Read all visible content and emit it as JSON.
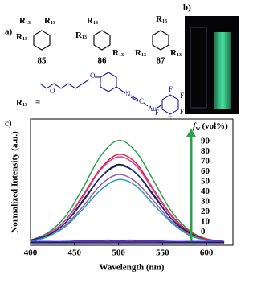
{
  "panel_a": {
    "label": "a)",
    "substituent": {
      "symbol": "R",
      "subscript": "13"
    },
    "compounds": [
      "85",
      "86",
      "87"
    ],
    "equals": "=",
    "atoms": [
      "O",
      "O",
      "N",
      "C",
      "Au",
      "F",
      "F",
      "F",
      "F",
      "F"
    ]
  },
  "panel_b": {
    "label": "b)"
  },
  "panel_c": {
    "label": "c)"
  },
  "chart_data": {
    "type": "line",
    "x_label": "Wavelength (nm)",
    "y_label": "Normalized Intensity (a.u.)",
    "legend_title": {
      "symbol": "f",
      "subscript": "w",
      "unit": "(vol%)"
    },
    "x": [
      400,
      420,
      440,
      460,
      480,
      500,
      520,
      540,
      560,
      580,
      600,
      620
    ],
    "xlim": [
      400,
      630
    ],
    "xticks": [
      400,
      450,
      500,
      550,
      600
    ],
    "ylim": [
      0,
      1
    ],
    "series": [
      {
        "name": "90",
        "color": "#2ca04a",
        "values": [
          0.04,
          0.1,
          0.23,
          0.46,
          0.71,
          0.83,
          0.74,
          0.51,
          0.27,
          0.12,
          0.05,
          0.03
        ]
      },
      {
        "name": "80",
        "color": "#e0203a",
        "values": [
          0.04,
          0.09,
          0.2,
          0.4,
          0.61,
          0.72,
          0.65,
          0.44,
          0.24,
          0.11,
          0.05,
          0.03
        ]
      },
      {
        "name": "70",
        "color": "#d040a0",
        "values": [
          0.04,
          0.09,
          0.2,
          0.39,
          0.6,
          0.7,
          0.63,
          0.43,
          0.23,
          0.1,
          0.04,
          0.03
        ]
      },
      {
        "name": "60",
        "color": "#202020",
        "values": [
          0.04,
          0.08,
          0.18,
          0.36,
          0.54,
          0.64,
          0.57,
          0.4,
          0.21,
          0.1,
          0.04,
          0.02
        ]
      },
      {
        "name": "50",
        "color": "#1a2a80",
        "values": [
          0.04,
          0.08,
          0.18,
          0.35,
          0.54,
          0.63,
          0.57,
          0.39,
          0.21,
          0.09,
          0.04,
          0.02
        ]
      },
      {
        "name": "40",
        "color": "#9a5ab8",
        "values": [
          0.03,
          0.07,
          0.16,
          0.31,
          0.48,
          0.56,
          0.5,
          0.35,
          0.19,
          0.09,
          0.04,
          0.02
        ]
      },
      {
        "name": "30",
        "color": "#30a0b0",
        "values": [
          0.03,
          0.07,
          0.15,
          0.29,
          0.44,
          0.52,
          0.47,
          0.32,
          0.18,
          0.08,
          0.04,
          0.02
        ]
      },
      {
        "name": "20",
        "color": "#2040d0",
        "values": [
          0.03,
          0.03,
          0.03,
          0.035,
          0.04,
          0.04,
          0.04,
          0.035,
          0.03,
          0.03,
          0.03,
          0.03
        ]
      },
      {
        "name": "10",
        "color": "#7030a0",
        "values": [
          0.025,
          0.025,
          0.025,
          0.03,
          0.03,
          0.03,
          0.03,
          0.03,
          0.025,
          0.025,
          0.025,
          0.025
        ]
      },
      {
        "name": "0",
        "color": "#101060",
        "values": [
          0.02,
          0.02,
          0.02,
          0.02,
          0.02,
          0.02,
          0.02,
          0.02,
          0.02,
          0.02,
          0.02,
          0.02
        ]
      }
    ]
  }
}
